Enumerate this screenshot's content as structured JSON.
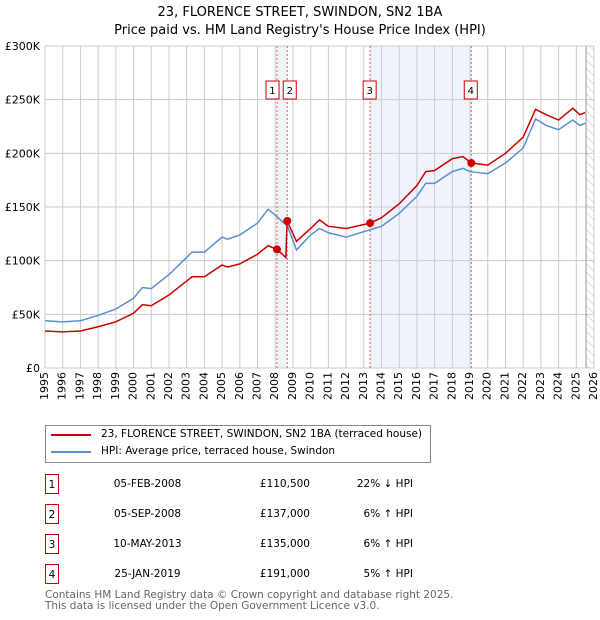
{
  "chart_data": {
    "type": "line",
    "title": "23, FLORENCE STREET, SWINDON, SN2 1BA",
    "subtitle": "Price paid vs. HM Land Registry's House Price Index (HPI)",
    "xlim": [
      1995,
      2026
    ],
    "ylim": [
      0,
      300000
    ],
    "x_ticks": [
      "1995",
      "1996",
      "1997",
      "1998",
      "1999",
      "2000",
      "2001",
      "2002",
      "2003",
      "2004",
      "2005",
      "2006",
      "2007",
      "2008",
      "2009",
      "2010",
      "2011",
      "2012",
      "2013",
      "2014",
      "2015",
      "2016",
      "2017",
      "2018",
      "2019",
      "2020",
      "2021",
      "2022",
      "2023",
      "2024",
      "2025",
      "2026"
    ],
    "y_ticks": [
      {
        "v": 0,
        "label": "£0"
      },
      {
        "v": 50000,
        "label": "£50K"
      },
      {
        "v": 100000,
        "label": "£100K"
      },
      {
        "v": 150000,
        "label": "£150K"
      },
      {
        "v": 200000,
        "label": "£200K"
      },
      {
        "v": 250000,
        "label": "£250K"
      },
      {
        "v": 300000,
        "label": "£300K"
      }
    ],
    "grid": true,
    "series": [
      {
        "name": "23, FLORENCE STREET, SWINDON, SN2 1BA (terraced house)",
        "color": "#cc0000",
        "x": [
          1995,
          1996,
          1997,
          1998,
          1999,
          2000,
          2000.5,
          2001,
          2002,
          2003,
          2003.3,
          2004,
          2005,
          2005.3,
          2006,
          2007,
          2007.6,
          2008.1,
          2008.6,
          2008.67,
          2009.2,
          2010,
          2010.5,
          2011,
          2012,
          2013.36,
          2014,
          2015,
          2016,
          2016.5,
          2017,
          2018,
          2018.6,
          2019.07,
          2020,
          2021,
          2022,
          2022.7,
          2023.3,
          2024,
          2024.8,
          2025.2,
          2025.5
        ],
        "y": [
          34500,
          33700,
          34500,
          38400,
          43000,
          51000,
          59000,
          58000,
          68000,
          81000,
          85000,
          85000,
          96000,
          94000,
          97000,
          106000,
          114000,
          110500,
          103000,
          137000,
          118000,
          130000,
          138000,
          132000,
          130000,
          135000,
          140000,
          153000,
          170000,
          183000,
          184000,
          195000,
          197000,
          191000,
          189000,
          200000,
          215000,
          241000,
          236000,
          231000,
          242000,
          236000,
          238000
        ]
      },
      {
        "name": "HPI: Average price, terraced house, Swindon",
        "color": "#5b8fd0",
        "x": [
          1995,
          1996,
          1997,
          1998,
          1999,
          2000,
          2000.5,
          2001,
          2002,
          2003,
          2003.3,
          2004,
          2005,
          2005.3,
          2006,
          2007,
          2007.6,
          2008.1,
          2008.7,
          2009.2,
          2010,
          2010.5,
          2011,
          2012,
          2013,
          2014,
          2015,
          2016,
          2016.5,
          2017,
          2018,
          2018.6,
          2019,
          2020,
          2021,
          2022,
          2022.7,
          2023.3,
          2024,
          2024.8,
          2025.2,
          2025.5
        ],
        "y": [
          44000,
          43000,
          44000,
          49000,
          55000,
          65000,
          75000,
          74000,
          87000,
          103000,
          108000,
          108000,
          122000,
          120000,
          124000,
          135000,
          148000,
          141000,
          132000,
          110000,
          124000,
          130000,
          126000,
          122000,
          127000,
          132000,
          144000,
          160000,
          172000,
          172000,
          183000,
          186000,
          183000,
          181000,
          191000,
          205000,
          232000,
          226000,
          222000,
          231000,
          226000,
          228000
        ]
      }
    ],
    "sales": [
      {
        "n": "1",
        "x": 2008.1,
        "y": 110500
      },
      {
        "n": "2",
        "x": 2008.68,
        "y": 137000
      },
      {
        "n": "3",
        "x": 2013.36,
        "y": 135000
      },
      {
        "n": "4",
        "x": 2019.07,
        "y": 191000
      }
    ],
    "shaded": [
      [
        2008.1,
        2008.68
      ],
      [
        2013.36,
        2019.07
      ]
    ],
    "future_from": 2025.55,
    "legend_position": "below"
  },
  "legend": [
    "23, FLORENCE STREET, SWINDON, SN2 1BA (terraced house)",
    "HPI: Average price, terraced house, Swindon"
  ],
  "table": [
    {
      "n": "1",
      "date": "05-FEB-2008",
      "price": "£110,500",
      "hpi": "22% ↓ HPI"
    },
    {
      "n": "2",
      "date": "05-SEP-2008",
      "price": "£137,000",
      "hpi": "6% ↑ HPI"
    },
    {
      "n": "3",
      "date": "10-MAY-2013",
      "price": "£135,000",
      "hpi": "6% ↑ HPI"
    },
    {
      "n": "4",
      "date": "25-JAN-2019",
      "price": "£191,000",
      "hpi": "5% ↑ HPI"
    }
  ],
  "footer": [
    "Contains HM Land Registry data © Crown copyright and database right 2025.",
    "This data is licensed under the Open Government Licence v3.0."
  ]
}
